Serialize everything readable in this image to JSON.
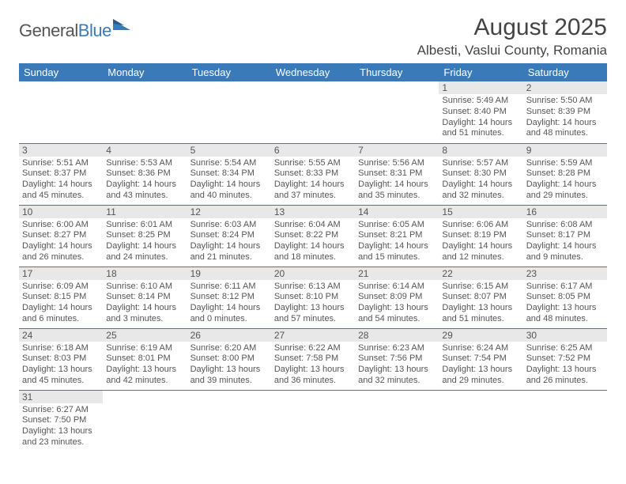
{
  "logo": {
    "text_dark": "General",
    "text_blue": "Blue"
  },
  "header": {
    "month_title": "August 2025",
    "location": "Albesti, Vaslui County, Romania"
  },
  "style": {
    "header_bg": "#3a7ab8",
    "header_text": "#ffffff",
    "daybar_bg": "#e8e8e8",
    "text_color": "#555555",
    "border_color": "#3a7ab8",
    "title_fontsize": 30,
    "location_fontsize": 17,
    "dayheader_fontsize": 13,
    "cell_fontsize": 11
  },
  "day_headers": [
    "Sunday",
    "Monday",
    "Tuesday",
    "Wednesday",
    "Thursday",
    "Friday",
    "Saturday"
  ],
  "weeks": [
    [
      null,
      null,
      null,
      null,
      null,
      {
        "n": "1",
        "sunrise": "Sunrise: 5:49 AM",
        "sunset": "Sunset: 8:40 PM",
        "daylight": "Daylight: 14 hours and 51 minutes."
      },
      {
        "n": "2",
        "sunrise": "Sunrise: 5:50 AM",
        "sunset": "Sunset: 8:39 PM",
        "daylight": "Daylight: 14 hours and 48 minutes."
      }
    ],
    [
      {
        "n": "3",
        "sunrise": "Sunrise: 5:51 AM",
        "sunset": "Sunset: 8:37 PM",
        "daylight": "Daylight: 14 hours and 45 minutes."
      },
      {
        "n": "4",
        "sunrise": "Sunrise: 5:53 AM",
        "sunset": "Sunset: 8:36 PM",
        "daylight": "Daylight: 14 hours and 43 minutes."
      },
      {
        "n": "5",
        "sunrise": "Sunrise: 5:54 AM",
        "sunset": "Sunset: 8:34 PM",
        "daylight": "Daylight: 14 hours and 40 minutes."
      },
      {
        "n": "6",
        "sunrise": "Sunrise: 5:55 AM",
        "sunset": "Sunset: 8:33 PM",
        "daylight": "Daylight: 14 hours and 37 minutes."
      },
      {
        "n": "7",
        "sunrise": "Sunrise: 5:56 AM",
        "sunset": "Sunset: 8:31 PM",
        "daylight": "Daylight: 14 hours and 35 minutes."
      },
      {
        "n": "8",
        "sunrise": "Sunrise: 5:57 AM",
        "sunset": "Sunset: 8:30 PM",
        "daylight": "Daylight: 14 hours and 32 minutes."
      },
      {
        "n": "9",
        "sunrise": "Sunrise: 5:59 AM",
        "sunset": "Sunset: 8:28 PM",
        "daylight": "Daylight: 14 hours and 29 minutes."
      }
    ],
    [
      {
        "n": "10",
        "sunrise": "Sunrise: 6:00 AM",
        "sunset": "Sunset: 8:27 PM",
        "daylight": "Daylight: 14 hours and 26 minutes."
      },
      {
        "n": "11",
        "sunrise": "Sunrise: 6:01 AM",
        "sunset": "Sunset: 8:25 PM",
        "daylight": "Daylight: 14 hours and 24 minutes."
      },
      {
        "n": "12",
        "sunrise": "Sunrise: 6:03 AM",
        "sunset": "Sunset: 8:24 PM",
        "daylight": "Daylight: 14 hours and 21 minutes."
      },
      {
        "n": "13",
        "sunrise": "Sunrise: 6:04 AM",
        "sunset": "Sunset: 8:22 PM",
        "daylight": "Daylight: 14 hours and 18 minutes."
      },
      {
        "n": "14",
        "sunrise": "Sunrise: 6:05 AM",
        "sunset": "Sunset: 8:21 PM",
        "daylight": "Daylight: 14 hours and 15 minutes."
      },
      {
        "n": "15",
        "sunrise": "Sunrise: 6:06 AM",
        "sunset": "Sunset: 8:19 PM",
        "daylight": "Daylight: 14 hours and 12 minutes."
      },
      {
        "n": "16",
        "sunrise": "Sunrise: 6:08 AM",
        "sunset": "Sunset: 8:17 PM",
        "daylight": "Daylight: 14 hours and 9 minutes."
      }
    ],
    [
      {
        "n": "17",
        "sunrise": "Sunrise: 6:09 AM",
        "sunset": "Sunset: 8:15 PM",
        "daylight": "Daylight: 14 hours and 6 minutes."
      },
      {
        "n": "18",
        "sunrise": "Sunrise: 6:10 AM",
        "sunset": "Sunset: 8:14 PM",
        "daylight": "Daylight: 14 hours and 3 minutes."
      },
      {
        "n": "19",
        "sunrise": "Sunrise: 6:11 AM",
        "sunset": "Sunset: 8:12 PM",
        "daylight": "Daylight: 14 hours and 0 minutes."
      },
      {
        "n": "20",
        "sunrise": "Sunrise: 6:13 AM",
        "sunset": "Sunset: 8:10 PM",
        "daylight": "Daylight: 13 hours and 57 minutes."
      },
      {
        "n": "21",
        "sunrise": "Sunrise: 6:14 AM",
        "sunset": "Sunset: 8:09 PM",
        "daylight": "Daylight: 13 hours and 54 minutes."
      },
      {
        "n": "22",
        "sunrise": "Sunrise: 6:15 AM",
        "sunset": "Sunset: 8:07 PM",
        "daylight": "Daylight: 13 hours and 51 minutes."
      },
      {
        "n": "23",
        "sunrise": "Sunrise: 6:17 AM",
        "sunset": "Sunset: 8:05 PM",
        "daylight": "Daylight: 13 hours and 48 minutes."
      }
    ],
    [
      {
        "n": "24",
        "sunrise": "Sunrise: 6:18 AM",
        "sunset": "Sunset: 8:03 PM",
        "daylight": "Daylight: 13 hours and 45 minutes."
      },
      {
        "n": "25",
        "sunrise": "Sunrise: 6:19 AM",
        "sunset": "Sunset: 8:01 PM",
        "daylight": "Daylight: 13 hours and 42 minutes."
      },
      {
        "n": "26",
        "sunrise": "Sunrise: 6:20 AM",
        "sunset": "Sunset: 8:00 PM",
        "daylight": "Daylight: 13 hours and 39 minutes."
      },
      {
        "n": "27",
        "sunrise": "Sunrise: 6:22 AM",
        "sunset": "Sunset: 7:58 PM",
        "daylight": "Daylight: 13 hours and 36 minutes."
      },
      {
        "n": "28",
        "sunrise": "Sunrise: 6:23 AM",
        "sunset": "Sunset: 7:56 PM",
        "daylight": "Daylight: 13 hours and 32 minutes."
      },
      {
        "n": "29",
        "sunrise": "Sunrise: 6:24 AM",
        "sunset": "Sunset: 7:54 PM",
        "daylight": "Daylight: 13 hours and 29 minutes."
      },
      {
        "n": "30",
        "sunrise": "Sunrise: 6:25 AM",
        "sunset": "Sunset: 7:52 PM",
        "daylight": "Daylight: 13 hours and 26 minutes."
      }
    ],
    [
      {
        "n": "31",
        "sunrise": "Sunrise: 6:27 AM",
        "sunset": "Sunset: 7:50 PM",
        "daylight": "Daylight: 13 hours and 23 minutes."
      },
      null,
      null,
      null,
      null,
      null,
      null
    ]
  ]
}
